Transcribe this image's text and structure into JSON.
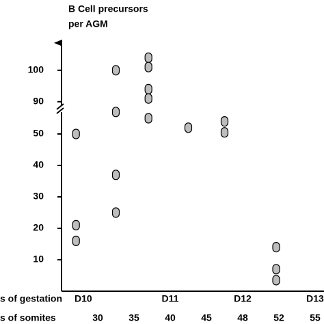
{
  "chart_data": {
    "type": "scatter",
    "title": [
      "B Cell precursors",
      "per AGM"
    ],
    "row_labels": [
      "s of gestation",
      "s of somites"
    ],
    "xticks": [
      30,
      35,
      40,
      45,
      48,
      52,
      55
    ],
    "x2ticks": [
      {
        "value": 28,
        "label": "D10"
      },
      {
        "value": 40,
        "label": "D11"
      },
      {
        "value": 48,
        "label": "D12"
      },
      {
        "value": 55,
        "label": "D13"
      }
    ],
    "ylim": [
      0,
      110
    ],
    "ybreak": [
      58,
      88
    ],
    "yticks": [
      10,
      20,
      30,
      40,
      50,
      90,
      100
    ],
    "color": "#bdbdbd",
    "x": [
      27,
      27,
      27,
      32.5,
      32.5,
      32.5,
      32.5,
      37,
      37,
      37,
      37,
      37,
      42.5,
      46.5,
      46.5,
      51.7,
      51.7,
      51.7
    ],
    "values": [
      50,
      21,
      16,
      100,
      57,
      37,
      25,
      104,
      101,
      94,
      91,
      55,
      52,
      54,
      50.5,
      14,
      7,
      3.5
    ]
  }
}
